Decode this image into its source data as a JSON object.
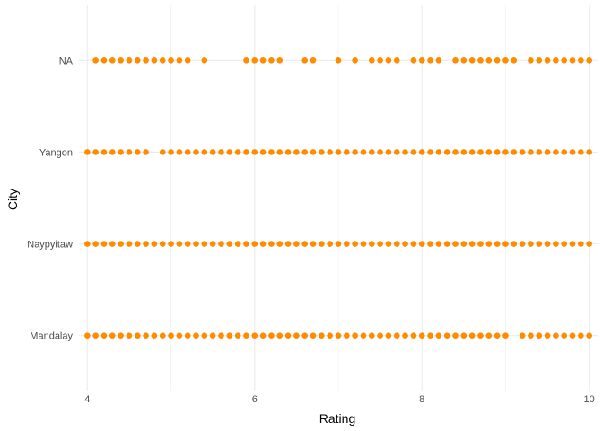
{
  "chart_data": {
    "type": "scatter",
    "title": "",
    "xlabel": "Rating",
    "ylabel": "City",
    "xlim": [
      3.9,
      10.1
    ],
    "x_ticks": [
      4,
      6,
      8,
      10
    ],
    "x_tick_labels": [
      "4",
      "6",
      "8",
      "10"
    ],
    "categories": [
      "Mandalay",
      "Naypyitaw",
      "Yangon",
      "NA"
    ],
    "grid": "on",
    "legend": "none",
    "point_color": "#ff8c00",
    "grid_color": "#ebebeb",
    "series": [
      {
        "category": "Mandalay",
        "x": [
          4.0,
          4.1,
          4.2,
          4.3,
          4.4,
          4.5,
          4.6,
          4.7,
          4.8,
          4.9,
          5.0,
          5.1,
          5.2,
          5.3,
          5.4,
          5.5,
          5.6,
          5.7,
          5.8,
          5.9,
          6.0,
          6.1,
          6.2,
          6.3,
          6.4,
          6.5,
          6.6,
          6.7,
          6.8,
          6.9,
          7.0,
          7.1,
          7.2,
          7.3,
          7.4,
          7.5,
          7.6,
          7.7,
          7.8,
          7.9,
          8.0,
          8.1,
          8.2,
          8.3,
          8.4,
          8.5,
          8.6,
          8.7,
          8.8,
          8.9,
          9.0,
          9.2,
          9.3,
          9.4,
          9.5,
          9.6,
          9.7,
          9.8,
          9.9,
          10.0
        ]
      },
      {
        "category": "Naypyitaw",
        "x": [
          4.0,
          4.1,
          4.2,
          4.3,
          4.4,
          4.5,
          4.6,
          4.7,
          4.8,
          4.9,
          5.0,
          5.1,
          5.2,
          5.3,
          5.4,
          5.5,
          5.6,
          5.7,
          5.8,
          5.9,
          6.0,
          6.1,
          6.2,
          6.3,
          6.4,
          6.5,
          6.6,
          6.7,
          6.8,
          6.9,
          7.0,
          7.1,
          7.2,
          7.3,
          7.4,
          7.5,
          7.6,
          7.7,
          7.8,
          7.9,
          8.0,
          8.1,
          8.2,
          8.3,
          8.4,
          8.5,
          8.6,
          8.7,
          8.8,
          8.9,
          9.0,
          9.1,
          9.2,
          9.3,
          9.4,
          9.5,
          9.6,
          9.7,
          9.8,
          9.9,
          10.0
        ]
      },
      {
        "category": "Yangon",
        "x": [
          4.0,
          4.1,
          4.2,
          4.3,
          4.4,
          4.5,
          4.6,
          4.7,
          4.9,
          5.0,
          5.1,
          5.2,
          5.3,
          5.4,
          5.5,
          5.6,
          5.7,
          5.8,
          5.9,
          6.0,
          6.1,
          6.2,
          6.3,
          6.4,
          6.5,
          6.6,
          6.7,
          6.8,
          6.9,
          7.0,
          7.1,
          7.2,
          7.3,
          7.4,
          7.5,
          7.6,
          7.7,
          7.8,
          7.9,
          8.0,
          8.1,
          8.2,
          8.3,
          8.4,
          8.5,
          8.6,
          8.7,
          8.8,
          8.9,
          9.0,
          9.1,
          9.2,
          9.3,
          9.4,
          9.5,
          9.6,
          9.7,
          9.8,
          9.9,
          10.0
        ]
      },
      {
        "category": "NA",
        "x": [
          4.1,
          4.2,
          4.3,
          4.4,
          4.5,
          4.6,
          4.7,
          4.8,
          4.9,
          5.0,
          5.1,
          5.2,
          5.4,
          5.9,
          6.0,
          6.1,
          6.2,
          6.3,
          6.6,
          6.7,
          7.0,
          7.2,
          7.4,
          7.5,
          7.6,
          7.7,
          7.9,
          8.0,
          8.1,
          8.2,
          8.4,
          8.5,
          8.6,
          8.7,
          8.8,
          8.9,
          9.0,
          9.1,
          9.3,
          9.4,
          9.5,
          9.6,
          9.7,
          9.8,
          9.9,
          10.0
        ]
      }
    ]
  }
}
